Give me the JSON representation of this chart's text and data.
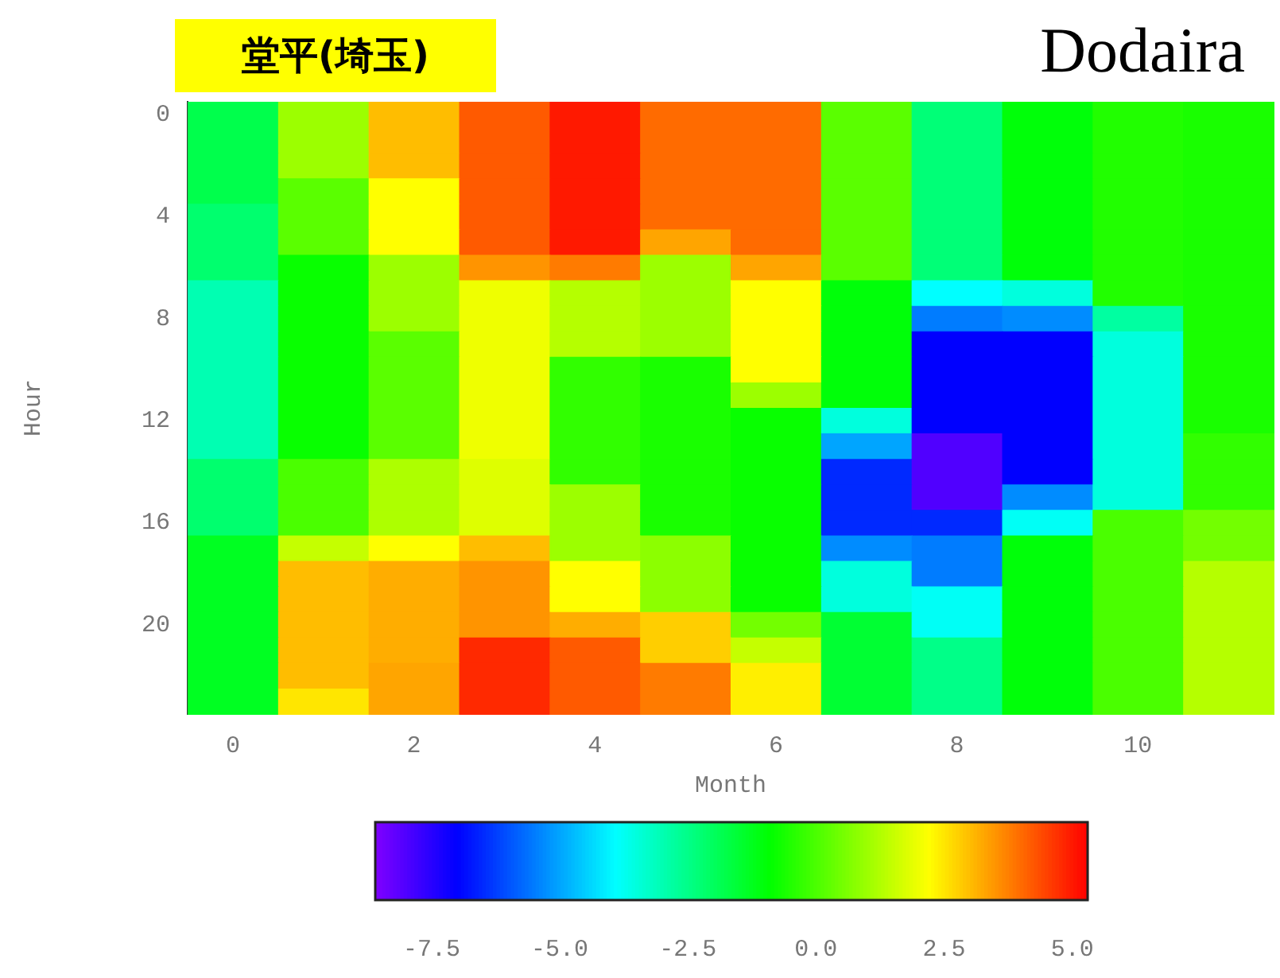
{
  "chart_data": {
    "type": "heatmap",
    "title": "堂平(埼玉)",
    "subtitle": "Dodaira",
    "xlabel": "Month",
    "ylabel": "Hour",
    "categories": [
      "0",
      null,
      "2",
      null,
      "4",
      null,
      "6",
      null,
      "8",
      null,
      "10",
      null
    ],
    "y_categories": [
      "0",
      null,
      null,
      null,
      "4",
      null,
      null,
      null,
      "8",
      null,
      null,
      null,
      "12",
      null,
      null,
      null,
      "16",
      null,
      null,
      null,
      "20",
      null,
      null,
      null
    ],
    "clim": [
      -8.6,
      5.3
    ],
    "cticks": [
      -7.5,
      {
        "value": -5,
        "label": "-5.0"
      },
      -2.5,
      {
        "value": 0,
        "label": "0.0"
      },
      2.5,
      {
        "value": 5,
        "label": "5.0"
      }
    ],
    "cells": [
      [
        -1.8,
        1.0,
        3.0,
        4.2,
        5.0,
        4.0,
        4.0,
        0.2,
        -2.3,
        -1.0,
        -0.5,
        -0.6
      ],
      [
        -1.8,
        1.0,
        3.0,
        4.2,
        5.0,
        4.0,
        4.0,
        0.2,
        -2.3,
        -1.0,
        -0.5,
        -0.6
      ],
      [
        -1.8,
        1.0,
        3.0,
        4.2,
        5.0,
        4.0,
        4.0,
        0.2,
        -2.3,
        -1.0,
        -0.5,
        -0.6
      ],
      [
        -1.8,
        0.2,
        2.2,
        4.2,
        5.0,
        4.0,
        4.0,
        0.2,
        -2.3,
        -1.0,
        -0.5,
        -0.6
      ],
      [
        -2.2,
        0.2,
        2.2,
        4.2,
        5.0,
        4.0,
        4.0,
        0.2,
        -2.3,
        -1.0,
        -0.5,
        -0.6
      ],
      [
        -2.2,
        0.2,
        2.2,
        4.2,
        5.0,
        3.3,
        4.0,
        0.2,
        -2.3,
        -1.0,
        -0.5,
        -0.6
      ],
      [
        -2.2,
        -0.8,
        1.0,
        3.5,
        3.8,
        1.0,
        3.3,
        0.2,
        -2.3,
        -1.0,
        -0.5,
        -0.6
      ],
      [
        -3.0,
        -0.8,
        1.0,
        2.0,
        1.3,
        1.0,
        2.2,
        -1.0,
        -3.9,
        -3.5,
        -0.5,
        -0.6
      ],
      [
        -3.0,
        -0.8,
        1.0,
        2.0,
        1.3,
        1.0,
        2.2,
        -1.0,
        -5.5,
        -5.3,
        -2.8,
        -0.6
      ],
      [
        -3.0,
        -0.8,
        0.2,
        2.0,
        1.3,
        1.0,
        2.2,
        -1.0,
        -7.0,
        -7.0,
        -3.5,
        -0.6
      ],
      [
        -3.0,
        -0.8,
        0.2,
        2.0,
        -0.3,
        -0.6,
        2.2,
        -1.0,
        -7.0,
        -7.0,
        -3.5,
        -0.6
      ],
      [
        -3.0,
        -0.8,
        0.2,
        2.0,
        -0.3,
        -0.6,
        1.0,
        -1.0,
        -7.0,
        -7.0,
        -3.5,
        -0.6
      ],
      [
        -3.0,
        -0.8,
        0.2,
        2.0,
        -0.3,
        -0.6,
        -0.8,
        -3.5,
        -7.0,
        -7.0,
        -3.5,
        -0.6
      ],
      [
        -3.0,
        -0.8,
        0.2,
        2.0,
        -0.3,
        -0.6,
        -0.8,
        -5.0,
        -8.0,
        -7.0,
        -3.5,
        -0.3
      ],
      [
        -2.2,
        0.0,
        1.2,
        1.8,
        -0.3,
        -0.6,
        -0.8,
        -6.5,
        -8.0,
        -7.0,
        -3.5,
        -0.3
      ],
      [
        -2.2,
        0.0,
        1.2,
        1.8,
        1.0,
        -0.6,
        -0.8,
        -6.5,
        -8.0,
        -5.3,
        -3.5,
        -0.3
      ],
      [
        -2.2,
        0.0,
        1.2,
        1.8,
        1.0,
        -0.6,
        -0.8,
        -6.5,
        -6.5,
        -3.8,
        0.0,
        0.5
      ],
      [
        -1.3,
        1.5,
        2.2,
        3.0,
        1.0,
        0.8,
        -0.8,
        -5.3,
        -5.5,
        -1.0,
        0.0,
        0.5
      ],
      [
        -1.3,
        3.0,
        3.2,
        3.5,
        2.2,
        0.8,
        -0.8,
        -3.5,
        -5.5,
        -1.0,
        0.0,
        1.3
      ],
      [
        -1.3,
        3.0,
        3.2,
        3.5,
        2.2,
        0.8,
        -0.8,
        -3.5,
        -3.8,
        -1.0,
        0.0,
        1.3
      ],
      [
        -1.3,
        3.0,
        3.2,
        3.5,
        3.2,
        2.8,
        0.5,
        -1.5,
        -3.8,
        -1.0,
        0.0,
        1.3
      ],
      [
        -1.3,
        3.0,
        3.2,
        4.8,
        4.2,
        2.8,
        1.5,
        -1.5,
        -2.5,
        -1.0,
        0.0,
        1.3
      ],
      [
        -1.3,
        3.0,
        3.3,
        4.8,
        4.2,
        3.8,
        2.4,
        -1.5,
        -2.5,
        -1.0,
        0.0,
        1.3
      ],
      [
        -1.3,
        2.5,
        3.3,
        4.8,
        4.2,
        3.8,
        2.4,
        -1.5,
        -2.5,
        -1.0,
        0.0,
        1.3
      ]
    ]
  }
}
